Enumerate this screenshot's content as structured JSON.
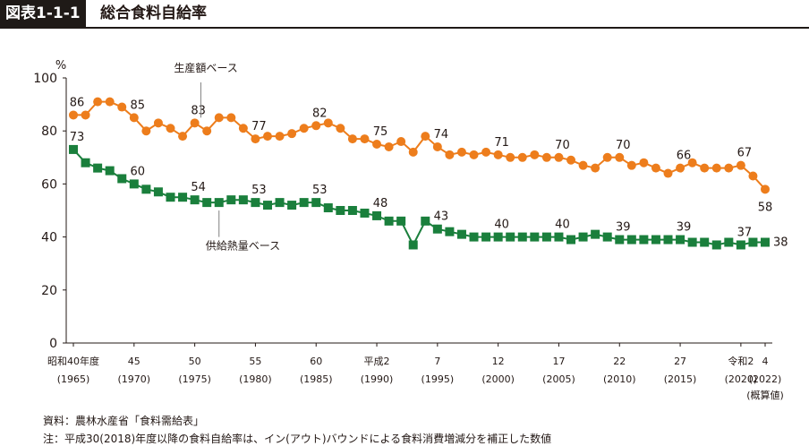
{
  "header": {
    "badge": "図表1-1-1",
    "title": "総合食料自給率"
  },
  "notes": {
    "source": "資料：農林水産省「食料需給表」",
    "footnote": "注：平成30(2018)年度以降の食料自給率は、イン(アウト)バウンドによる食料消費増減分を補正した数値"
  },
  "colors": {
    "production": "#ed7d1c",
    "calorie": "#1a7f3c",
    "axis": "#231815"
  },
  "chart_data": {
    "type": "line",
    "ylabel": "%",
    "ylim": [
      0,
      100
    ],
    "yticks": [
      0,
      20,
      40,
      60,
      80,
      100
    ],
    "x": [
      1965,
      1966,
      1967,
      1968,
      1969,
      1970,
      1971,
      1972,
      1973,
      1974,
      1975,
      1976,
      1977,
      1978,
      1979,
      1980,
      1981,
      1982,
      1983,
      1984,
      1985,
      1986,
      1987,
      1988,
      1989,
      1990,
      1991,
      1992,
      1993,
      1994,
      1995,
      1996,
      1997,
      1998,
      1999,
      2000,
      2001,
      2002,
      2003,
      2004,
      2005,
      2006,
      2007,
      2008,
      2009,
      2010,
      2011,
      2012,
      2013,
      2014,
      2015,
      2016,
      2017,
      2018,
      2019,
      2020,
      2021,
      2022
    ],
    "xticks": [
      {
        "x": 1965,
        "line1": "昭和40年度",
        "line2": "(1965)"
      },
      {
        "x": 1970,
        "line1": "45",
        "line2": "(1970)"
      },
      {
        "x": 1975,
        "line1": "50",
        "line2": "(1975)"
      },
      {
        "x": 1980,
        "line1": "55",
        "line2": "(1980)"
      },
      {
        "x": 1985,
        "line1": "60",
        "line2": "(1985)"
      },
      {
        "x": 1990,
        "line1": "平成2",
        "line2": "(1990)"
      },
      {
        "x": 1995,
        "line1": "7",
        "line2": "(1995)"
      },
      {
        "x": 2000,
        "line1": "12",
        "line2": "(2000)"
      },
      {
        "x": 2005,
        "line1": "17",
        "line2": "(2005)"
      },
      {
        "x": 2010,
        "line1": "22",
        "line2": "(2010)"
      },
      {
        "x": 2015,
        "line1": "27",
        "line2": "(2015)"
      },
      {
        "x": 2020,
        "line1": "令和2",
        "line2": "(2020)"
      },
      {
        "x": 2022,
        "line1": "4",
        "line2": "(2022)",
        "line3": "(概算値)"
      }
    ],
    "series": [
      {
        "name": "生産額ベース",
        "marker": "circle",
        "values": [
          86,
          86,
          91,
          91,
          89,
          85,
          80,
          83,
          81,
          78,
          83,
          80,
          85,
          85,
          81,
          77,
          78,
          78,
          79,
          81,
          82,
          83,
          81,
          77,
          77,
          75,
          74,
          76,
          72,
          78,
          74,
          71,
          72,
          71,
          72,
          71,
          70,
          70,
          71,
          70,
          70,
          69,
          67,
          66,
          70,
          70,
          67,
          68,
          66,
          64,
          66,
          68,
          66,
          66,
          66,
          67,
          63,
          58
        ],
        "labels": [
          {
            "x": 1965,
            "v": 86
          },
          {
            "x": 1970,
            "v": 85
          },
          {
            "x": 1975,
            "v": 83
          },
          {
            "x": 1980,
            "v": 77
          },
          {
            "x": 1985,
            "v": 82
          },
          {
            "x": 1990,
            "v": 75
          },
          {
            "x": 1995,
            "v": 74
          },
          {
            "x": 2000,
            "v": 71
          },
          {
            "x": 2005,
            "v": 70
          },
          {
            "x": 2010,
            "v": 70
          },
          {
            "x": 2015,
            "v": 66
          },
          {
            "x": 2020,
            "v": 67
          },
          {
            "x": 2022,
            "v": 58
          }
        ]
      },
      {
        "name": "供給熱量ベース",
        "marker": "square",
        "values": [
          73,
          68,
          66,
          65,
          62,
          60,
          58,
          57,
          55,
          55,
          54,
          53,
          53,
          54,
          54,
          53,
          52,
          53,
          52,
          53,
          53,
          51,
          50,
          50,
          49,
          48,
          46,
          46,
          37,
          46,
          43,
          42,
          41,
          40,
          40,
          40,
          40,
          40,
          40,
          40,
          40,
          39,
          40,
          41,
          40,
          39,
          39,
          39,
          39,
          39,
          39,
          38,
          38,
          37,
          38,
          37,
          38,
          38
        ],
        "labels": [
          {
            "x": 1965,
            "v": 73
          },
          {
            "x": 1970,
            "v": 60
          },
          {
            "x": 1975,
            "v": 54
          },
          {
            "x": 1980,
            "v": 53
          },
          {
            "x": 1985,
            "v": 53
          },
          {
            "x": 1990,
            "v": 48
          },
          {
            "x": 1995,
            "v": 43
          },
          {
            "x": 2000,
            "v": 40
          },
          {
            "x": 2005,
            "v": 40
          },
          {
            "x": 2010,
            "v": 39
          },
          {
            "x": 2015,
            "v": 39
          },
          {
            "x": 2020,
            "v": 37
          },
          {
            "x": 2022,
            "v": 38
          }
        ]
      }
    ],
    "grid": false
  }
}
